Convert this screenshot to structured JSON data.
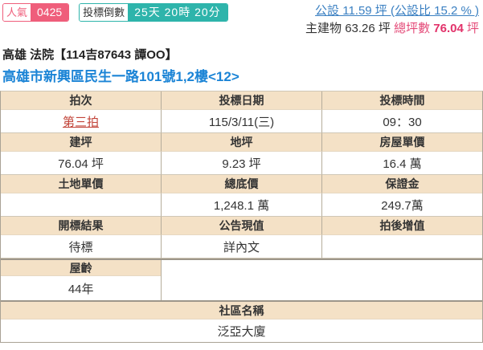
{
  "topbar": {
    "popularity": {
      "label": "人氣",
      "value": "0425"
    },
    "countdown": {
      "label": "投標倒數",
      "value": "25天 20時 20分"
    },
    "common_area_link": "公設 11.59 坪 (公設比 15.2 % )",
    "main_building": "主建物 63.26 坪",
    "total_label": "總坪數",
    "total_value": "76.04",
    "total_unit": "坪"
  },
  "header": {
    "title": "高雄 法院【114吉87643 譚OO】",
    "address": "高雄市新興區民生一路101號1,2樓<12>"
  },
  "table": {
    "headers1": [
      "拍次",
      "投標日期",
      "投標時間"
    ],
    "values1": [
      "第三拍",
      "115/3/11(三)",
      "09：30"
    ],
    "headers2": [
      "建坪",
      "地坪",
      "房屋單價"
    ],
    "values2": [
      "76.04 坪",
      "9.23 坪",
      "16.4 萬"
    ],
    "headers3": [
      "土地單價",
      "總底價",
      "保證金"
    ],
    "values3": [
      "",
      "1,248.1 萬",
      "249.7萬"
    ],
    "headers4": [
      "開標結果",
      "公告現值",
      "拍後增值"
    ],
    "values4": [
      "待標",
      "詳內文",
      ""
    ],
    "age_label": "屋齡",
    "age_value": "44年",
    "community_label": "社區名稱",
    "community_value": "泛亞大廈"
  },
  "colors": {
    "popularity_pink": "#ef5e7b",
    "countdown_teal": "#2eb4ab",
    "common_area_blue": "#3b80c2",
    "address_blue": "#1b84d6",
    "auction_round_red": "#c2453a",
    "total_rose": "#e44a78",
    "table_header_beige": "#f4e1c6",
    "table_border": "#b5ad9b"
  }
}
